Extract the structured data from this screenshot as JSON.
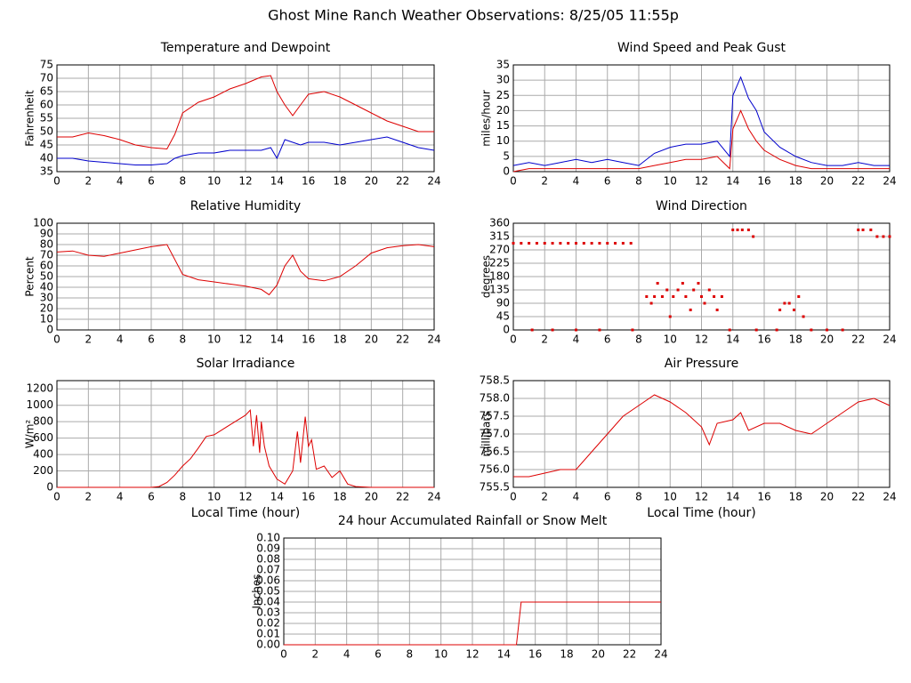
{
  "title": "Ghost Mine Ranch Weather Observations: 8/25/05 11:55p",
  "chart_data": [
    {
      "type": "line",
      "title": "Temperature and Dewpoint",
      "ylabel": "Fahrenheit",
      "x": [
        0,
        1,
        2,
        3,
        4,
        5,
        6,
        7,
        7.5,
        8,
        9,
        10,
        11,
        12,
        13,
        13.6,
        14,
        14.5,
        15,
        15.5,
        16,
        17,
        18,
        19,
        20,
        21,
        22,
        23,
        24
      ],
      "series": [
        {
          "color": "#dd0000",
          "values": [
            48,
            48,
            49.5,
            48.5,
            47,
            45,
            44,
            43.5,
            49,
            57,
            61,
            63,
            66,
            68,
            70.5,
            71,
            65,
            60,
            56,
            60,
            64,
            65,
            63,
            60,
            57,
            54,
            52,
            50,
            50
          ]
        },
        {
          "color": "#0000cc",
          "values": [
            40,
            40,
            39,
            38.5,
            38,
            37.5,
            37.5,
            38,
            40,
            41,
            42,
            42,
            43,
            43,
            43,
            44,
            40,
            47,
            46,
            45,
            46,
            46,
            45,
            46,
            47,
            48,
            46,
            44,
            43
          ]
        }
      ],
      "xlim": [
        0,
        24
      ],
      "xticks": [
        0,
        2,
        4,
        6,
        8,
        10,
        12,
        14,
        16,
        18,
        20,
        22,
        24
      ],
      "ylim": [
        35,
        75
      ],
      "yticks": [
        35,
        40,
        45,
        50,
        55,
        60,
        65,
        70,
        75
      ],
      "grid": true
    },
    {
      "type": "line",
      "title": "Wind Speed and Peak Gust",
      "ylabel": "miles/hour",
      "x": [
        0,
        1,
        2,
        3,
        4,
        5,
        6,
        7,
        8,
        9,
        10,
        11,
        12,
        13,
        13.8,
        14,
        14.5,
        15,
        15.5,
        16,
        17,
        18,
        19,
        20,
        21,
        22,
        23,
        24
      ],
      "series": [
        {
          "color": "#0000cc",
          "values": [
            2,
            3,
            2,
            3,
            4,
            3,
            4,
            3,
            2,
            6,
            8,
            9,
            9,
            10,
            5,
            25,
            31,
            24,
            20,
            13,
            8,
            5,
            3,
            2,
            2,
            3,
            2,
            2
          ]
        },
        {
          "color": "#dd0000",
          "values": [
            0,
            1,
            1,
            1,
            1,
            1,
            1,
            1,
            1,
            2,
            3,
            4,
            4,
            5,
            1,
            14,
            20,
            14,
            10,
            7,
            4,
            2,
            1,
            1,
            1,
            1,
            1,
            1
          ]
        }
      ],
      "xlim": [
        0,
        24
      ],
      "xticks": [
        0,
        2,
        4,
        6,
        8,
        10,
        12,
        14,
        16,
        18,
        20,
        22,
        24
      ],
      "ylim": [
        0,
        35
      ],
      "yticks": [
        0,
        5,
        10,
        15,
        20,
        25,
        30,
        35
      ],
      "grid": true
    },
    {
      "type": "line",
      "title": "Relative Humidity",
      "ylabel": "Percent",
      "x": [
        0,
        1,
        2,
        3,
        4,
        5,
        6,
        7,
        8,
        9,
        10,
        11,
        12,
        13,
        13.5,
        14,
        14.5,
        15,
        15.5,
        16,
        17,
        18,
        19,
        20,
        21,
        22,
        23,
        24
      ],
      "series": [
        {
          "color": "#dd0000",
          "values": [
            73,
            74,
            70,
            69,
            72,
            75,
            78,
            80,
            52,
            47,
            45,
            43,
            41,
            38,
            33,
            42,
            60,
            70,
            55,
            48,
            46,
            50,
            60,
            72,
            77,
            79,
            80,
            78
          ]
        }
      ],
      "xlim": [
        0,
        24
      ],
      "xticks": [
        0,
        2,
        4,
        6,
        8,
        10,
        12,
        14,
        16,
        18,
        20,
        22,
        24
      ],
      "ylim": [
        0,
        100
      ],
      "yticks": [
        0,
        10,
        20,
        30,
        40,
        50,
        60,
        70,
        80,
        90,
        100
      ],
      "grid": true
    },
    {
      "type": "scatter",
      "title": "Wind Direction",
      "ylabel": "degrees",
      "x": [
        0,
        0.5,
        1,
        1.5,
        2,
        2.5,
        3,
        3.5,
        4,
        4.5,
        5,
        5.5,
        6,
        6.5,
        7,
        7.5,
        1.2,
        2.5,
        4,
        5.5,
        7.6,
        8.5,
        8.8,
        9,
        9.2,
        9.5,
        9.8,
        10,
        10.2,
        10.5,
        10.8,
        11,
        11.3,
        11.5,
        11.8,
        12,
        12.2,
        12.5,
        12.8,
        13,
        13.3,
        13.8,
        14,
        14.3,
        14.6,
        15,
        15.3,
        15.5,
        16.8,
        17,
        17.3,
        17.6,
        17.9,
        18.2,
        18.5,
        19,
        20,
        21,
        22,
        22.3,
        22.8,
        23.2,
        23.6,
        24
      ],
      "series": [
        {
          "color": "#dd0000",
          "values": [
            292.5,
            292.5,
            292.5,
            292.5,
            292.5,
            292.5,
            292.5,
            292.5,
            292.5,
            292.5,
            292.5,
            292.5,
            292.5,
            292.5,
            292.5,
            292.5,
            0,
            0,
            0,
            0,
            0,
            112.5,
            90,
            112.5,
            157.5,
            112.5,
            135,
            45,
            112.5,
            135,
            157.5,
            112.5,
            67.5,
            135,
            157.5,
            112.5,
            90,
            135,
            112.5,
            67.5,
            112.5,
            0,
            337.5,
            337.5,
            337.5,
            337.5,
            315,
            0,
            0,
            67.5,
            90,
            90,
            67.5,
            112.5,
            45,
            0,
            0,
            0,
            337.5,
            337.5,
            337.5,
            315,
            315,
            315
          ]
        }
      ],
      "xlim": [
        0,
        24
      ],
      "xticks": [
        0,
        2,
        4,
        6,
        8,
        10,
        12,
        14,
        16,
        18,
        20,
        22,
        24
      ],
      "ylim": [
        0,
        360
      ],
      "yticks": [
        0,
        45,
        90,
        135,
        180,
        225,
        270,
        315,
        360
      ],
      "grid": true
    },
    {
      "type": "line",
      "title": "Solar Irradiance",
      "ylabel": "W/m²",
      "xlabel": "Local Time (hour)",
      "x": [
        0,
        6,
        6.5,
        7,
        7.5,
        8,
        8.5,
        9,
        9.5,
        10,
        11,
        12,
        12.3,
        12.5,
        12.7,
        12.9,
        13,
        13.2,
        13.5,
        14,
        14.5,
        15,
        15.3,
        15.5,
        15.8,
        16,
        16.2,
        16.5,
        17,
        17.5,
        18,
        18.5,
        19,
        20,
        24
      ],
      "series": [
        {
          "color": "#dd0000",
          "values": [
            0,
            0,
            10,
            60,
            150,
            260,
            350,
            480,
            620,
            640,
            760,
            880,
            940,
            500,
            880,
            420,
            800,
            500,
            260,
            100,
            40,
            200,
            680,
            300,
            860,
            500,
            580,
            220,
            260,
            120,
            200,
            40,
            10,
            0,
            0
          ]
        }
      ],
      "xlim": [
        0,
        24
      ],
      "xticks": [
        0,
        2,
        4,
        6,
        8,
        10,
        12,
        14,
        16,
        18,
        20,
        22,
        24
      ],
      "ylim": [
        0,
        1300
      ],
      "yticks": [
        0,
        200,
        400,
        600,
        800,
        1000,
        1200
      ],
      "grid": true
    },
    {
      "type": "line",
      "title": "Air Pressure",
      "ylabel": "millibars",
      "xlabel": "Local Time (hour)",
      "x": [
        0,
        1,
        2,
        3,
        4,
        5,
        6,
        7,
        8,
        9,
        10,
        11,
        12,
        12.5,
        13,
        14,
        14.5,
        15,
        16,
        17,
        18,
        19,
        20,
        21,
        22,
        23,
        24
      ],
      "series": [
        {
          "color": "#dd0000",
          "values": [
            755.8,
            755.8,
            755.9,
            756.0,
            756.0,
            756.5,
            757.0,
            757.5,
            757.8,
            758.1,
            757.9,
            757.6,
            757.2,
            756.7,
            757.3,
            757.4,
            757.6,
            757.1,
            757.3,
            757.3,
            757.1,
            757.0,
            757.3,
            757.6,
            757.9,
            758.0,
            757.8
          ]
        }
      ],
      "xlim": [
        0,
        24
      ],
      "xticks": [
        0,
        2,
        4,
        6,
        8,
        10,
        12,
        14,
        16,
        18,
        20,
        22,
        24
      ],
      "ylim": [
        755.5,
        758.5
      ],
      "yticks": [
        755.5,
        {
          "value": 756,
          "label": "756.0"
        },
        756.5,
        {
          "value": 757,
          "label": "757.0"
        },
        757.5,
        {
          "value": 758,
          "label": "758.0"
        },
        758.5
      ],
      "grid": true
    },
    {
      "type": "line",
      "title": "24 hour Accumulated Rainfall or Snow Melt",
      "ylabel": "Inches",
      "x": [
        0,
        14.8,
        15.1,
        24
      ],
      "series": [
        {
          "color": "#dd0000",
          "values": [
            0,
            0,
            0.04,
            0.04
          ]
        }
      ],
      "xlim": [
        0,
        24
      ],
      "xticks": [
        0,
        2,
        4,
        6,
        8,
        10,
        12,
        14,
        16,
        18,
        20,
        22,
        24
      ],
      "ylim": [
        0,
        0.1
      ],
      "yticks": [
        {
          "value": 0,
          "label": "0.00"
        },
        {
          "value": 0.01,
          "label": "0.01"
        },
        {
          "value": 0.02,
          "label": "0.02"
        },
        {
          "value": 0.03,
          "label": "0.03"
        },
        {
          "value": 0.04,
          "label": "0.04"
        },
        {
          "value": 0.05,
          "label": "0.05"
        },
        {
          "value": 0.06,
          "label": "0.06"
        },
        {
          "value": 0.07,
          "label": "0.07"
        },
        {
          "value": 0.08,
          "label": "0.08"
        },
        {
          "value": 0.09,
          "label": "0.09"
        },
        {
          "value": 0.1,
          "label": "0.10"
        }
      ],
      "grid": true
    }
  ]
}
